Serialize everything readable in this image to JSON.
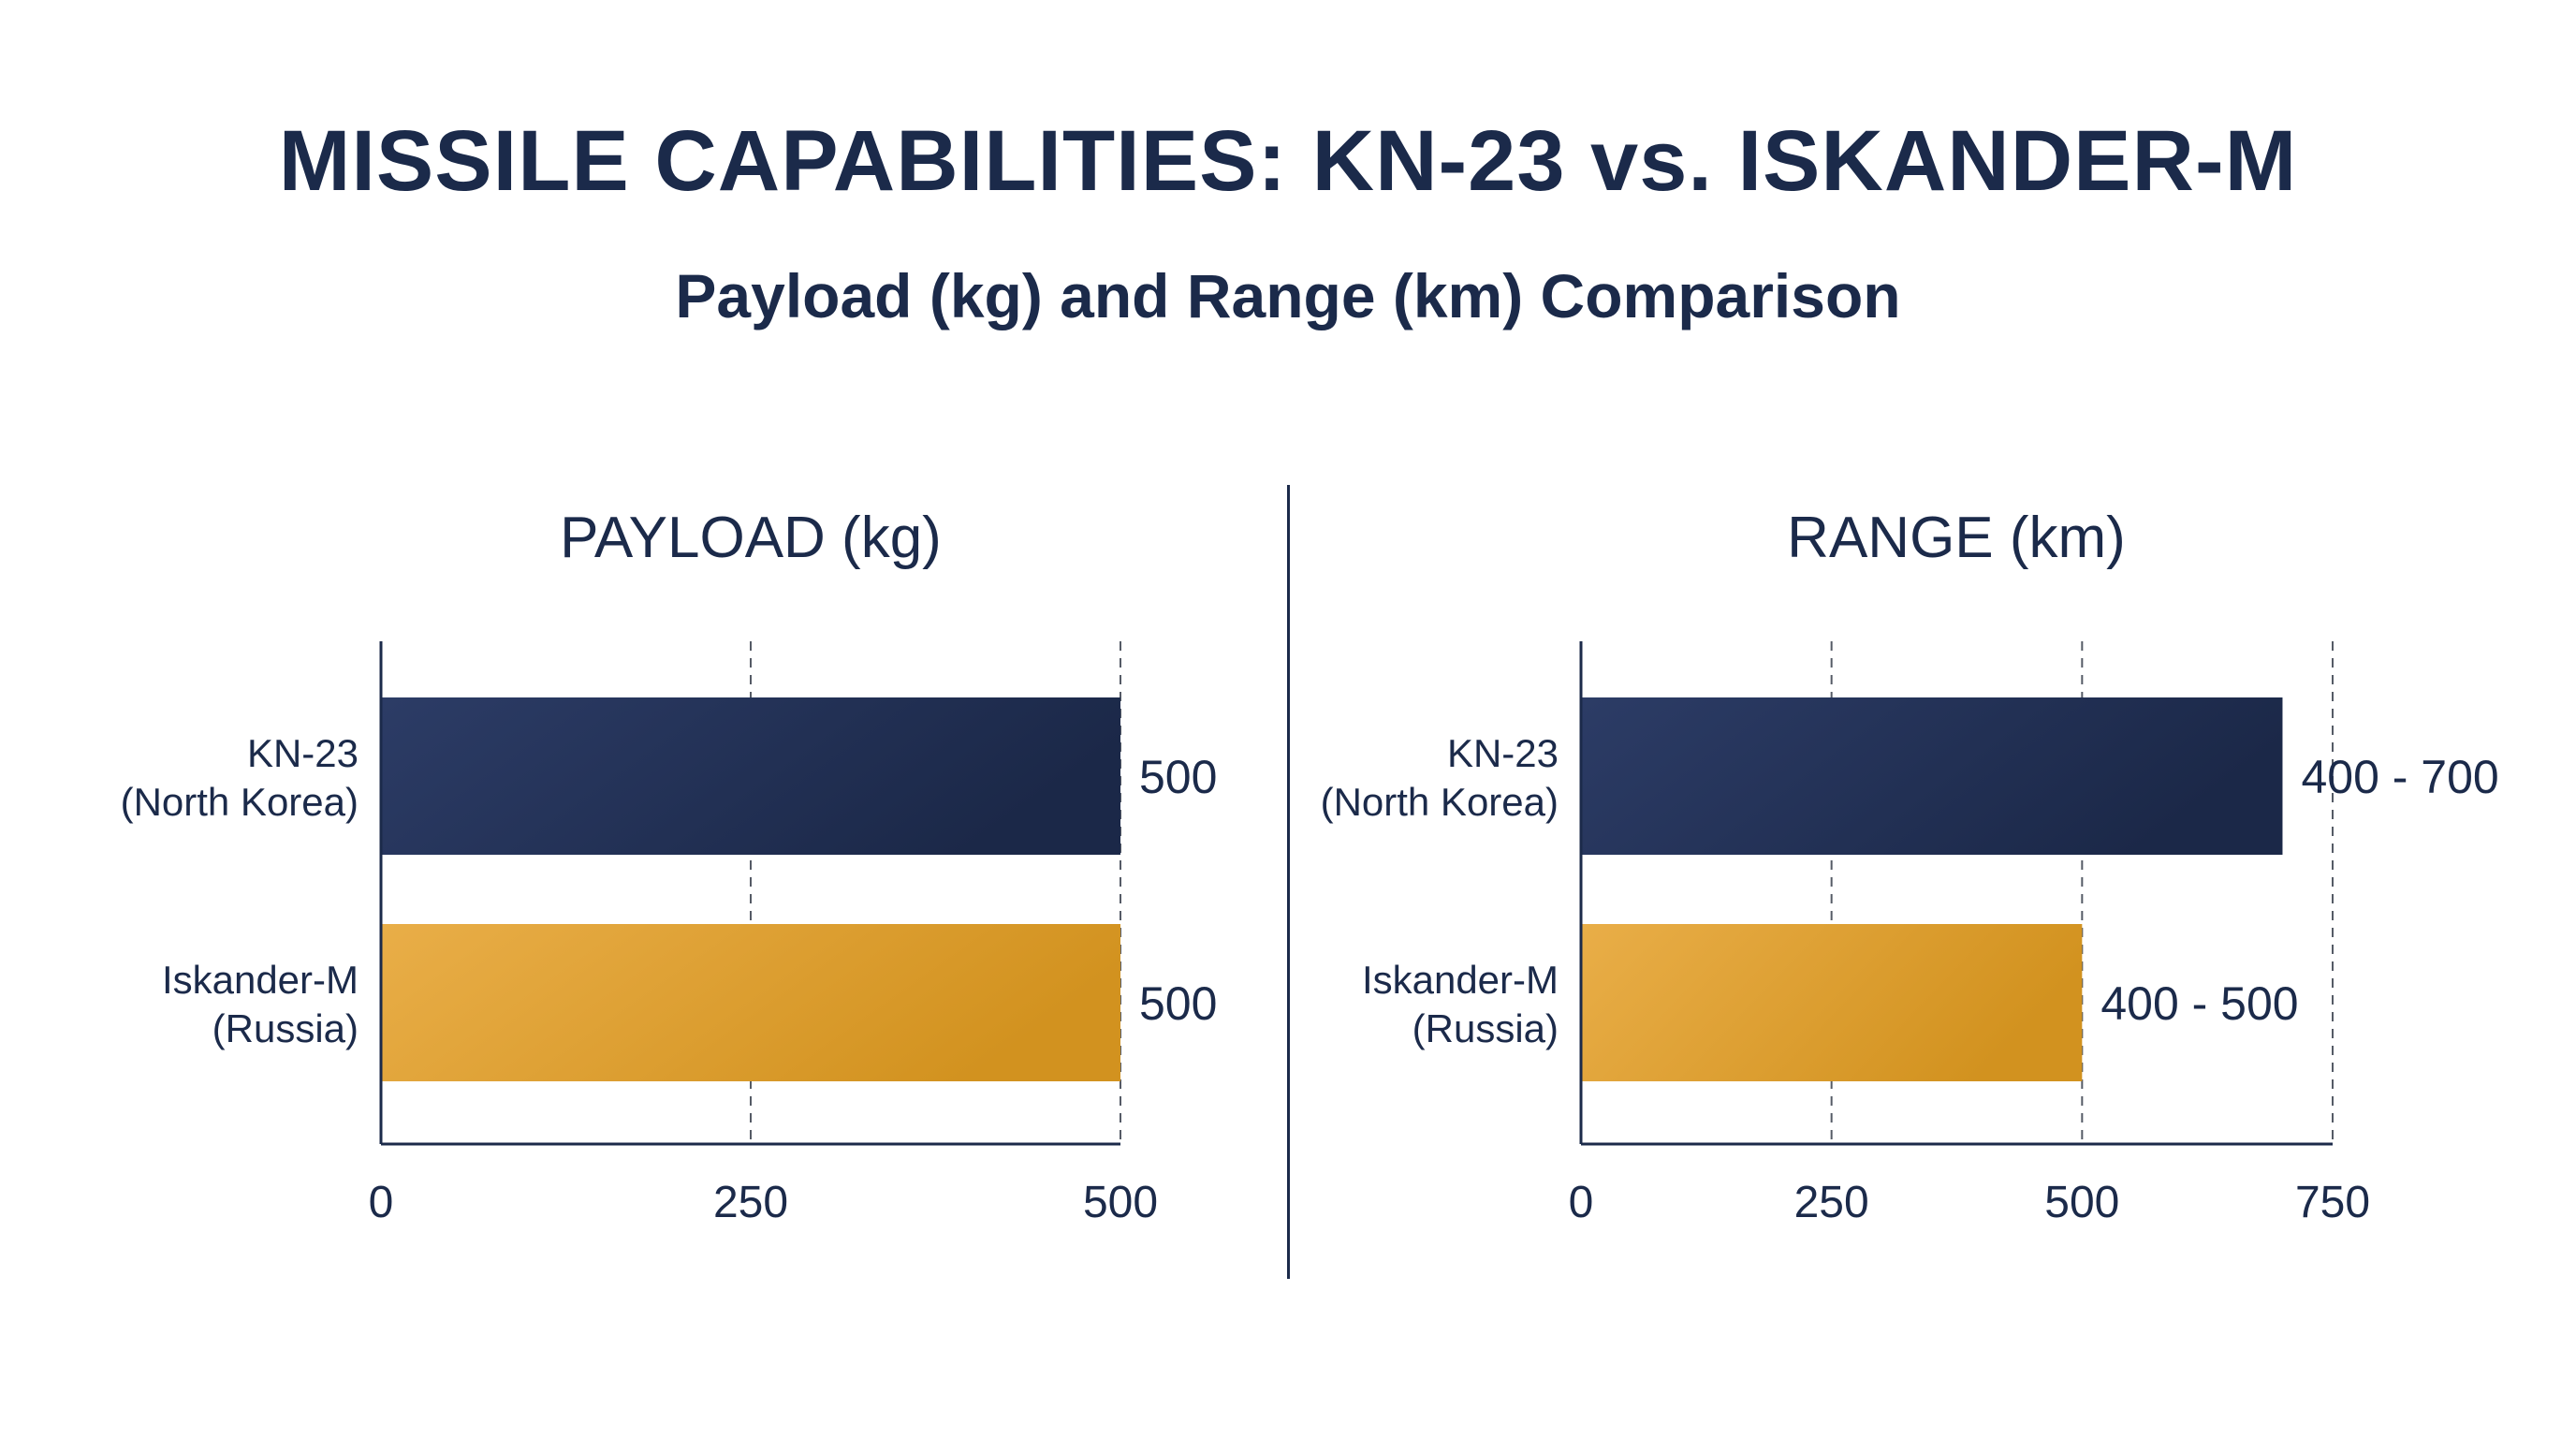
{
  "title": "MISSILE CAPABILITIES: KN-23 vs. ISKANDER-M",
  "subtitle": "Payload (kg) and Range (km) Comparison",
  "colors": {
    "kn23": "#27365c",
    "iskander": "#e1a23b",
    "text": "#1b2a4a"
  },
  "chart_data": [
    {
      "type": "bar",
      "orientation": "horizontal",
      "title": "PAYLOAD (kg)",
      "categories": [
        "KN-23\n(North Korea)",
        "Iskander-M\n(Russia)"
      ],
      "values": [
        500,
        500
      ],
      "value_labels": [
        "500",
        "500"
      ],
      "xlim": [
        0,
        500
      ],
      "xticks": [
        0,
        250,
        500
      ],
      "grid": "dashed vertical"
    },
    {
      "type": "bar",
      "orientation": "horizontal",
      "title": "RANGE (km)",
      "categories": [
        "KN-23\n(North Korea)",
        "Iskander-M\n(Russia)"
      ],
      "values": [
        700,
        500
      ],
      "value_labels": [
        "400 - 700",
        "400 - 500"
      ],
      "xlim": [
        0,
        750
      ],
      "xticks": [
        0,
        250,
        500,
        750
      ],
      "grid": "dashed vertical"
    }
  ]
}
